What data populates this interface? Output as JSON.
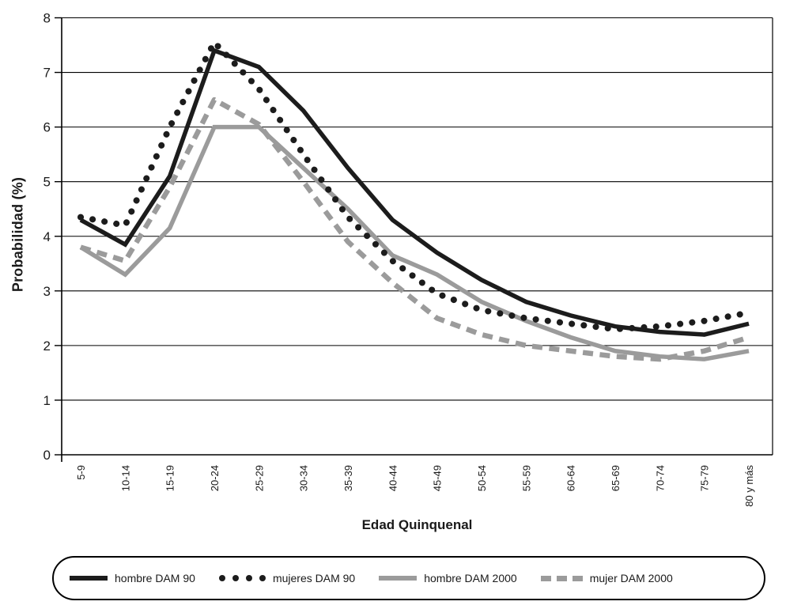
{
  "chart_data": {
    "type": "line",
    "title": "",
    "xlabel": "Edad Quinquenal",
    "ylabel": "Probabilidad (%)",
    "ylim": [
      0,
      8
    ],
    "yticks": [
      0,
      1,
      2,
      3,
      4,
      5,
      6,
      7,
      8
    ],
    "grid": true,
    "legend_position": "bottom",
    "categories": [
      "5-9",
      "10-14",
      "15-19",
      "20-24",
      "25-29",
      "30-34",
      "35-39",
      "40-44",
      "45-49",
      "50-54",
      "55-59",
      "60-64",
      "65-69",
      "70-74",
      "75-79",
      "80 y más"
    ],
    "series": [
      {
        "name": "hombre DAM 90",
        "style": "solid",
        "color": "#1c1c1c",
        "values": [
          4.3,
          3.85,
          5.1,
          7.4,
          7.1,
          6.3,
          5.25,
          4.3,
          3.7,
          3.2,
          2.8,
          2.55,
          2.35,
          2.25,
          2.2,
          2.4
        ]
      },
      {
        "name": "mujeres DAM 90",
        "style": "dotted",
        "color": "#1c1c1c",
        "values": [
          4.35,
          4.2,
          6.0,
          7.55,
          6.7,
          5.5,
          4.35,
          3.55,
          2.95,
          2.65,
          2.5,
          2.4,
          2.3,
          2.35,
          2.45,
          2.6
        ]
      },
      {
        "name": "hombre DAM 2000",
        "style": "solid",
        "color": "#9b9b9b",
        "values": [
          3.8,
          3.3,
          4.15,
          6.0,
          6.0,
          5.25,
          4.5,
          3.65,
          3.3,
          2.8,
          2.45,
          2.15,
          1.9,
          1.8,
          1.75,
          1.9
        ]
      },
      {
        "name": "mujer DAM 2000",
        "style": "dashed",
        "color": "#9b9b9b",
        "values": [
          3.8,
          3.55,
          4.9,
          6.5,
          6.05,
          5.0,
          3.9,
          3.15,
          2.5,
          2.2,
          2.0,
          1.9,
          1.8,
          1.75,
          1.9,
          2.15
        ]
      }
    ]
  }
}
